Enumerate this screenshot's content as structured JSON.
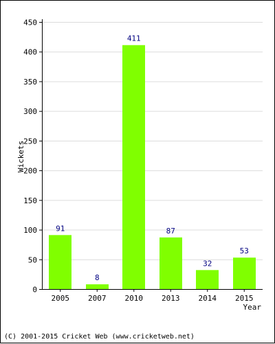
{
  "chart_data": {
    "type": "bar",
    "categories": [
      "2005",
      "2007",
      "2010",
      "2013",
      "2014",
      "2015"
    ],
    "values": [
      91,
      8,
      411,
      87,
      32,
      53
    ],
    "data_labels": [
      "91",
      "8",
      "411",
      "87",
      "32",
      "53"
    ],
    "xlabel": "Year",
    "ylabel": "Wickets",
    "ylim": [
      0,
      450
    ],
    "yticks": [
      0,
      50,
      100,
      150,
      200,
      250,
      300,
      350,
      400,
      450
    ],
    "grid": true,
    "bar_color": "#80ff00",
    "label_color": "#000080"
  },
  "footer": "(C) 2001-2015 Cricket Web (www.cricketweb.net)"
}
